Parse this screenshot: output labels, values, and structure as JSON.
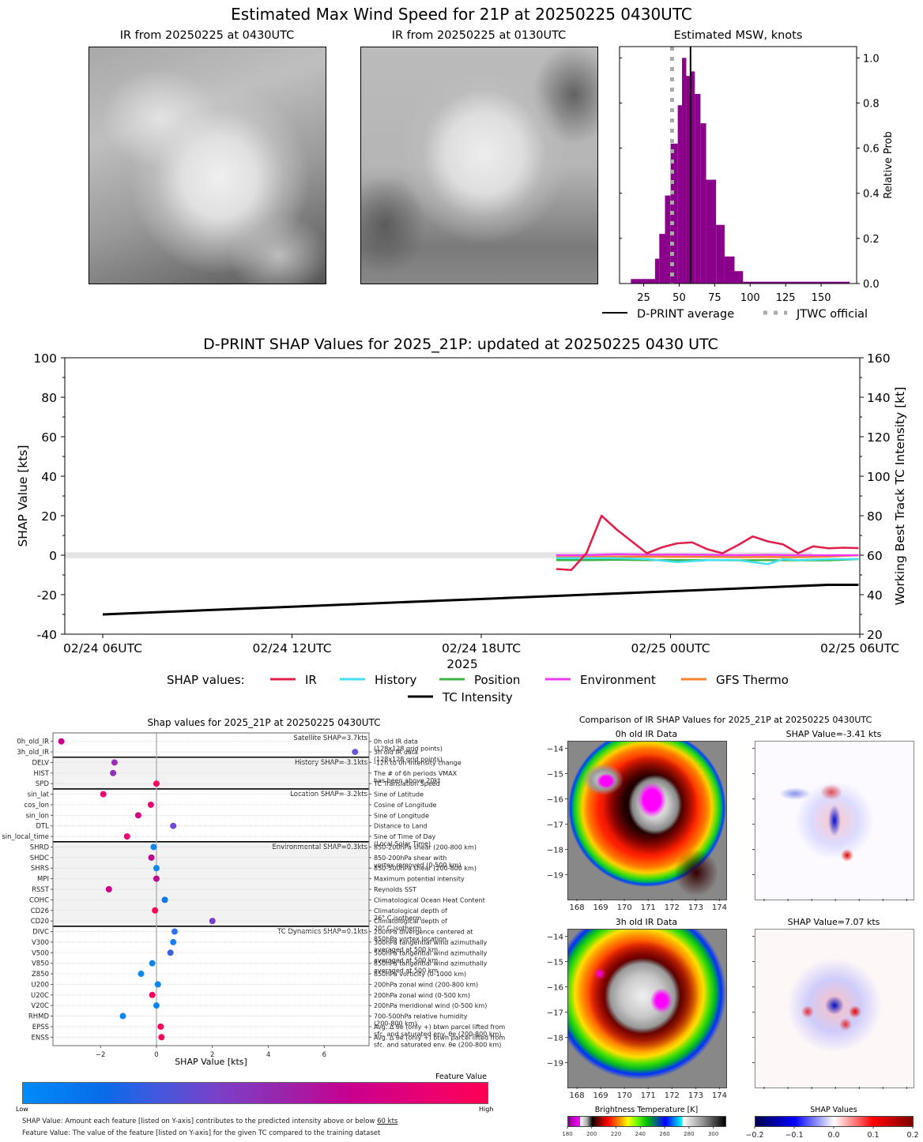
{
  "chart_data": [
    {
      "id": "ir-images",
      "type": "image",
      "title": "Estimated Max Wind Speed for 21P at 20250225 0430UTC",
      "panels": [
        {
          "title": "IR from 20250225 at 0430UTC"
        },
        {
          "title": "IR from 20250225 at 0130UTC"
        }
      ]
    },
    {
      "id": "msw-histogram",
      "type": "bar",
      "title": "Estimated MSW, knots",
      "xlabel": "",
      "ylabel": "Relative Prob",
      "xlim": [
        8,
        175
      ],
      "ylim": [
        0,
        1.05
      ],
      "xticks": [
        25,
        50,
        75,
        100,
        125,
        150
      ],
      "yticks": [
        0.0,
        0.2,
        0.4,
        0.6,
        0.8,
        1.0
      ],
      "ytick_labels": [
        "0.0",
        "0.2",
        "0.4",
        "0.6",
        "0.8",
        "1.0"
      ],
      "bars": [
        {
          "x0": 16,
          "x1": 33,
          "value": 0.02
        },
        {
          "x0": 33,
          "x1": 36,
          "value": 0.11
        },
        {
          "x0": 36,
          "x1": 40,
          "value": 0.22
        },
        {
          "x0": 40,
          "x1": 44,
          "value": 0.39
        },
        {
          "x0": 44,
          "x1": 49,
          "value": 0.62
        },
        {
          "x0": 49,
          "x1": 52,
          "value": 0.79
        },
        {
          "x0": 52,
          "x1": 55,
          "value": 1.0
        },
        {
          "x0": 55,
          "x1": 58,
          "value": 0.92
        },
        {
          "x0": 58,
          "x1": 61,
          "value": 0.94
        },
        {
          "x0": 61,
          "x1": 65,
          "value": 0.84
        },
        {
          "x0": 65,
          "x1": 69,
          "value": 0.71
        },
        {
          "x0": 69,
          "x1": 76,
          "value": 0.46
        },
        {
          "x0": 76,
          "x1": 82,
          "value": 0.26
        },
        {
          "x0": 82,
          "x1": 89,
          "value": 0.12
        },
        {
          "x0": 89,
          "x1": 95,
          "value": 0.055
        },
        {
          "x0": 95,
          "x1": 170,
          "value": 0.008
        }
      ],
      "bar_color": "#8b008b",
      "dprint_average": 58,
      "jtwc_official": 45,
      "legend": [
        {
          "label": "D-PRINT average",
          "style": "solid",
          "color": "#000000"
        },
        {
          "label": "JTWC official",
          "style": "dotted",
          "color": "#aaaaaa"
        }
      ]
    },
    {
      "id": "shap-timeseries",
      "type": "line",
      "title": "D-PRINT SHAP Values for 2025_21P: updated at 20250225 0430 UTC",
      "xlabel": "2025",
      "ylabel": "SHAP Value [kts]",
      "ylabel_right": "Working Best Track TC Intensity [kt]",
      "xlim_hours": [
        -1.9,
        24
      ],
      "xticks_hours": [
        0,
        6,
        12,
        18,
        24
      ],
      "xtick_labels": [
        "02/24 06UTC",
        "02/24 12UTC",
        "02/24 18UTC",
        "02/25 00UTC",
        "02/25 06UTC"
      ],
      "ylim": [
        -40,
        100
      ],
      "yticks": [
        -40,
        -20,
        0,
        20,
        40,
        60,
        80,
        100
      ],
      "ylim_right": [
        20,
        160
      ],
      "yticks_right": [
        20,
        40,
        60,
        80,
        100,
        120,
        140,
        160
      ],
      "zero_band": [
        -1.5,
        1.5
      ],
      "legend_title": "SHAP values:",
      "series": [
        {
          "name": "IR",
          "color": "#e0204a",
          "x": [
            15.0,
            15.5,
            16.0,
            16.5,
            17.0,
            17.5,
            18.0,
            18.5,
            19.0,
            19.5,
            20.0,
            20.5,
            21.0,
            21.5,
            22.0,
            22.5,
            23.0,
            23.5,
            24.0,
            24.5,
            25.0
          ],
          "y": [
            -7,
            -7.5,
            1,
            20,
            13,
            7,
            1,
            4,
            6,
            6.5,
            3,
            1,
            5,
            9.5,
            7,
            5.5,
            1,
            4.5,
            3.5,
            3.8,
            3.6
          ]
        },
        {
          "name": "History",
          "color": "#44e0f0",
          "x": [
            15.0,
            16.0,
            17.0,
            18.0,
            19.0,
            20.0,
            21.0,
            22.0,
            22.5,
            23.0,
            24.0,
            25.0
          ],
          "y": [
            -1.5,
            -1.5,
            -1.5,
            -2,
            -3.5,
            -2.5,
            -2.5,
            -4.5,
            -2,
            -2.5,
            -2,
            -2
          ]
        },
        {
          "name": "Position",
          "color": "#3cb444",
          "x": [
            15.0,
            16.0,
            17.0,
            18.0,
            19.0,
            20.0,
            21.0,
            22.0,
            23.0,
            24.0,
            25.0
          ],
          "y": [
            -2.5,
            -2.5,
            -2.3,
            -2.5,
            -2.5,
            -2.5,
            -2.6,
            -2.5,
            -2.6,
            -2.6,
            -2
          ]
        },
        {
          "name": "Environment",
          "color": "#f03cf0",
          "x": [
            15.0,
            16.0,
            17.0,
            18.0,
            19.0,
            20.0,
            21.0,
            22.0,
            23.0,
            24.0,
            25.0
          ],
          "y": [
            0,
            0,
            0.5,
            0.3,
            0.3,
            0.2,
            0,
            0.2,
            0,
            0,
            0
          ]
        },
        {
          "name": "GFS Thermo",
          "color": "#f58231",
          "x": [
            15.0,
            16.0,
            17.0,
            18.0,
            19.0,
            20.0,
            21.0,
            22.0,
            23.0,
            24.0,
            25.0
          ],
          "y": [
            -1,
            -1,
            -0.7,
            -0.7,
            -0.8,
            -0.8,
            -1,
            -0.9,
            -1,
            -0.7,
            0
          ]
        },
        {
          "name": "TC Intensity",
          "color": "#000000",
          "axis": "right",
          "x": [
            0,
            24,
            25
          ],
          "y": [
            30,
            45,
            45
          ]
        }
      ]
    },
    {
      "id": "feature-shap-dots",
      "type": "scatter",
      "title": "Shap values for 2025_21P at 20250225 0430UTC",
      "xlabel": "SHAP Value [kts]",
      "xlim": [
        -3.7,
        7.6
      ],
      "xticks": [
        -2,
        0,
        2,
        4,
        6
      ],
      "xtick_labels": [
        "−2",
        "0",
        "2",
        "4",
        "6"
      ],
      "groups": [
        {
          "label": "Satellite SHAP=3.7kts",
          "shaded": false,
          "features": [
            {
              "name": "0h_old_IR",
              "desc": "0h old IR data\n(128x128 grid points)",
              "shap": -3.4,
              "color": "#c8008c"
            },
            {
              "name": "3h_old_IR",
              "desc": "3h old IR data\n(128x128 grid points)",
              "shap": 7.1,
              "color": "#6a55d8"
            }
          ]
        },
        {
          "label": "History SHAP=-3.1kts",
          "shaded": true,
          "features": [
            {
              "name": "DELV",
              "desc": "-12h to 0h Intensity change",
              "shap": -1.5,
              "color": "#9a2cb8"
            },
            {
              "name": "HIST",
              "desc": "The # of 6h periods VMAX\nhas been above 20kt",
              "shap": -1.55,
              "color": "#9030b8"
            },
            {
              "name": "SPD",
              "desc": "TC Translation Speed",
              "shap": 0.0,
              "color": "#ff0060"
            }
          ]
        },
        {
          "label": "Location SHAP=-3.2kts",
          "shaded": false,
          "features": [
            {
              "name": "sin_lat",
              "desc": "Sine of Latitude",
              "shap": -1.9,
              "color": "#f0006a"
            },
            {
              "name": "cos_lon",
              "desc": "Cosine of Longitude",
              "shap": -0.2,
              "color": "#e80074"
            },
            {
              "name": "sin_lon",
              "desc": "Sine of Longitude",
              "shap": -0.65,
              "color": "#d8007e"
            },
            {
              "name": "DTL",
              "desc": "Distance to Land",
              "shap": 0.6,
              "color": "#7046d4"
            },
            {
              "name": "sin_local_time",
              "desc": "Sine of Time of Day\n(Local Solar Time)",
              "shap": -1.05,
              "color": "#ee0070"
            }
          ]
        },
        {
          "label": "Environmental SHAP=0.3kts",
          "shaded": true,
          "features": [
            {
              "name": "SHRD",
              "desc": "850-200hPa shear (200-800 km)",
              "shap": -0.1,
              "color": "#0a88f0"
            },
            {
              "name": "SHDC",
              "desc": "850-200hPa shear with\nvortex removed (0-500 km)",
              "shap": -0.18,
              "color": "#b8088e"
            },
            {
              "name": "SHRS",
              "desc": "850-500hPa shear (200-800 km)",
              "shap": 0.0,
              "color": "#0a88f0"
            },
            {
              "name": "MPI",
              "desc": "Maximum potential intensity",
              "shap": 0.0,
              "color": "#b8088e"
            },
            {
              "name": "RSST",
              "desc": "Reynolds SST",
              "shap": -1.7,
              "color": "#c8008a"
            },
            {
              "name": "COHC",
              "desc": "Climatological Ocean Heat Content",
              "shap": 0.3,
              "color": "#0a78f0"
            },
            {
              "name": "CD26",
              "desc": "Climatological depth of\n26° C isotherm",
              "shap": -0.05,
              "color": "#ff0058"
            },
            {
              "name": "CD20",
              "desc": "Climatological depth of\n20° C isotherm",
              "shap": 2.0,
              "color": "#7a3ed0"
            }
          ]
        },
        {
          "label": "TC Dynamics SHAP=0.1kts",
          "shaded": false,
          "features": [
            {
              "name": "DIVC",
              "desc": "200hPa divergence centered at\n850hPa vortex location",
              "shap": 0.65,
              "color": "#2a70f0"
            },
            {
              "name": "V300",
              "desc": "300hPa tangential wind azimuthally\naveraged at 500 km",
              "shap": 0.6,
              "color": "#1a80f0"
            },
            {
              "name": "V500",
              "desc": "500hPa tangential wind azimuthally\naveraged at 500 km",
              "shap": 0.5,
              "color": "#4060e0"
            },
            {
              "name": "V850",
              "desc": "850hPa tangential wind azimuthally\naveraged at 500 km",
              "shap": -0.15,
              "color": "#0a88f0"
            },
            {
              "name": "Z850",
              "desc": "850hPa vorticity (0-1000 km)",
              "shap": -0.55,
              "color": "#0a88f0"
            },
            {
              "name": "U200",
              "desc": "200hPa zonal wind (200-800 km)",
              "shap": 0.05,
              "color": "#0a84f0"
            },
            {
              "name": "U20C",
              "desc": "200hPa zonal wind (0-500 km)",
              "shap": -0.15,
              "color": "#ff0060"
            },
            {
              "name": "V20C",
              "desc": "200hPa meridional wind (0-500 km)",
              "shap": 0.0,
              "color": "#0a84f0"
            },
            {
              "name": "RHMD",
              "desc": "700-500hPa relative humidity\n(200-800 km)",
              "shap": -1.2,
              "color": "#0a88f0"
            },
            {
              "name": "EPSS",
              "desc": "Avg. Δ θe (only +) btwn parcel lifted from\nsfc. and saturated env. θe (200-800 km)",
              "shap": 0.15,
              "color": "#ff0060"
            },
            {
              "name": "ENSS",
              "desc": "Avg. Δ θe (only +) btwn parcel lifted from\nsfc. and saturated env. θe (200-800 km)",
              "shap": 0.18,
              "color": "#ff0060"
            }
          ]
        }
      ]
    },
    {
      "id": "ir-shap-comparison",
      "type": "heatmap",
      "title": "Comparison of IR SHAP Values for 2025_21P at 20250225 0430UTC",
      "panels": [
        {
          "title": "0h old IR Data",
          "kind": "ir"
        },
        {
          "title": "SHAP Value=-3.41 kts",
          "kind": "shap",
          "value": -3.41
        },
        {
          "title": "3h old IR Data",
          "kind": "ir"
        },
        {
          "title": "SHAP Value=7.07 kts",
          "kind": "shap",
          "value": 7.07
        }
      ],
      "lon_ticks": [
        168,
        169,
        170,
        171,
        172,
        173,
        174
      ],
      "lat_ticks": [
        -14,
        -15,
        -16,
        -17,
        -18,
        -19
      ],
      "lat_tick_labels": [
        "−14",
        "−15",
        "−16",
        "−17",
        "−18",
        "−19"
      ],
      "colorbars": [
        {
          "title": "Brightness Temperature [K]",
          "range": [
            180,
            310
          ],
          "ticks": [
            180,
            200,
            220,
            240,
            260,
            280,
            300
          ]
        },
        {
          "title": "SHAP Values",
          "range": [
            -0.2,
            0.2
          ],
          "ticks": [
            "−0.2",
            "−0.1",
            "0.0",
            "0.1",
            "0.2"
          ]
        }
      ]
    }
  ],
  "feature_colorbar": {
    "title": "Feature Value",
    "low_label": "Low",
    "high_label": "High"
  },
  "footnotes": {
    "shap_value": "SHAP Value: Amount each feature [listed on Y-axis] contributes to the predicted intensity above or below ",
    "shap_value_link": "60 kts",
    "feature_value": "Feature Value: The value of the feature [listed on Y-axis] for the given TC compared to the training dataset"
  }
}
